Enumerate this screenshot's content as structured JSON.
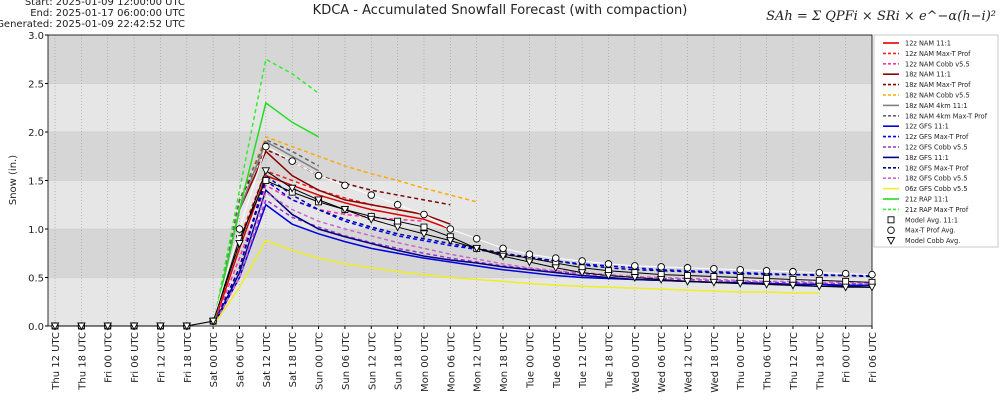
{
  "chart_data": {
    "type": "line",
    "title": "KDCA - Accumulated Snowfall Forecast (with compaction)",
    "header": [
      "Start: 2025-01-09 12:00:00 UTC",
      "End: 2025-01-17 06:00:00 UTC",
      "Generated: 2025-01-09 22:42:52 UTC"
    ],
    "formula": "SAh = Σ QPFi × SRi × e^−α(h−i)²",
    "ylabel": "Snow (in.)",
    "xlim": [
      -1.6,
      186
    ],
    "ylim": [
      0,
      3
    ],
    "yticks": [
      {
        "value": 0,
        "label": "0.0"
      },
      {
        "value": 0.5,
        "label": "0.5"
      },
      {
        "value": 1,
        "label": "1.0"
      },
      {
        "value": 1.5,
        "label": "1.5"
      },
      {
        "value": 2,
        "label": "2.0"
      },
      {
        "value": 2.5,
        "label": "2.5"
      },
      {
        "value": 3,
        "label": "3.0"
      }
    ],
    "xticks": [
      {
        "value": 0,
        "label": "Thu 12 UTC"
      },
      {
        "value": 6,
        "label": "Thu 18 UTC"
      },
      {
        "value": 12,
        "label": "Fri 00 UTC"
      },
      {
        "value": 18,
        "label": "Fri 06 UTC"
      },
      {
        "value": 24,
        "label": "Fri 12 UTC"
      },
      {
        "value": 30,
        "label": "Fri 18 UTC"
      },
      {
        "value": 36,
        "label": "Sat 00 UTC"
      },
      {
        "value": 42,
        "label": "Sat 06 UTC"
      },
      {
        "value": 48,
        "label": "Sat 12 UTC"
      },
      {
        "value": 54,
        "label": "Sat 18 UTC"
      },
      {
        "value": 60,
        "label": "Sun 00 UTC"
      },
      {
        "value": 66,
        "label": "Sun 06 UTC"
      },
      {
        "value": 72,
        "label": "Sun 12 UTC"
      },
      {
        "value": 78,
        "label": "Sun 18 UTC"
      },
      {
        "value": 84,
        "label": "Mon 00 UTC"
      },
      {
        "value": 90,
        "label": "Mon 06 UTC"
      },
      {
        "value": 96,
        "label": "Mon 12 UTC"
      },
      {
        "value": 102,
        "label": "Mon 18 UTC"
      },
      {
        "value": 108,
        "label": "Tue 00 UTC"
      },
      {
        "value": 114,
        "label": "Tue 06 UTC"
      },
      {
        "value": 120,
        "label": "Tue 12 UTC"
      },
      {
        "value": 126,
        "label": "Tue 18 UTC"
      },
      {
        "value": 132,
        "label": "Wed 00 UTC"
      },
      {
        "value": 138,
        "label": "Wed 06 UTC"
      },
      {
        "value": 144,
        "label": "Wed 12 UTC"
      },
      {
        "value": 150,
        "label": "Wed 18 UTC"
      },
      {
        "value": 156,
        "label": "Thu 00 UTC"
      },
      {
        "value": 162,
        "label": "Thu 06 UTC"
      },
      {
        "value": 168,
        "label": "Thu 12 UTC"
      },
      {
        "value": 174,
        "label": "Thu 18 UTC"
      },
      {
        "value": 180,
        "label": "Fri 00 UTC"
      },
      {
        "value": 186,
        "label": "Fri 06 UTC"
      }
    ],
    "grid": true,
    "legend": "right",
    "series": [
      {
        "name": "12z NAM 11:1",
        "color": "#dd0000",
        "dash": false,
        "x": [
          36,
          42,
          48,
          54,
          60,
          66,
          72,
          78,
          84,
          90
        ],
        "values": [
          0,
          0.8,
          1.55,
          1.45,
          1.35,
          1.27,
          1.2,
          1.15,
          1.1,
          1.0
        ]
      },
      {
        "name": "12z NAM Max-T Prof",
        "color": "#ee2222",
        "dash": true,
        "x": [
          36,
          42,
          48,
          54,
          60,
          66,
          72,
          78,
          84
        ],
        "values": [
          0,
          0.9,
          1.6,
          1.5,
          1.4,
          1.32,
          1.25,
          1.2,
          1.15
        ]
      },
      {
        "name": "12z NAM Cobb v5.5",
        "color": "#ff33aa",
        "dash": true,
        "x": [
          36,
          42,
          48,
          54,
          60,
          66,
          72,
          78,
          84
        ],
        "values": [
          0,
          0.7,
          1.45,
          1.3,
          1.2,
          1.15,
          1.12,
          1.1,
          1.08
        ]
      },
      {
        "name": "18z NAM 11:1",
        "color": "#8b0000",
        "dash": false,
        "x": [
          36,
          42,
          48,
          54,
          60,
          66,
          72,
          78,
          84,
          90
        ],
        "values": [
          0,
          1.2,
          1.8,
          1.55,
          1.4,
          1.3,
          1.25,
          1.2,
          1.15,
          1.05
        ]
      },
      {
        "name": "18z NAM Max-T Prof",
        "color": "#7a0a0a",
        "dash": true,
        "x": [
          36,
          42,
          48,
          54,
          60,
          66,
          72,
          78,
          84,
          90
        ],
        "values": [
          0,
          1.3,
          1.82,
          1.7,
          1.55,
          1.47,
          1.4,
          1.35,
          1.3,
          1.25
        ]
      },
      {
        "name": "18z NAM Cobb v5.5",
        "color": "#ffaa00",
        "dash": true,
        "x": [
          36,
          42,
          48,
          54,
          60,
          66,
          72,
          78,
          84,
          90,
          96
        ],
        "values": [
          0,
          1.3,
          1.95,
          1.85,
          1.75,
          1.65,
          1.57,
          1.5,
          1.42,
          1.35,
          1.28
        ]
      },
      {
        "name": "18z NAM 4km 11:1",
        "color": "#808080",
        "dash": false,
        "x": [
          36,
          42,
          48,
          54,
          60
        ],
        "values": [
          0,
          1.2,
          1.9,
          1.75,
          1.6
        ]
      },
      {
        "name": "18z NAM 4km Max-T Prof",
        "color": "#666666",
        "dash": true,
        "x": [
          36,
          42,
          48,
          54,
          60
        ],
        "values": [
          0,
          1.3,
          1.92,
          1.8,
          1.65
        ]
      },
      {
        "name": "12z GFS 11:1",
        "color": "#0000dd",
        "dash": false,
        "x": [
          36,
          42,
          48,
          54,
          60,
          66,
          72,
          78,
          84,
          90,
          96,
          102,
          108,
          114,
          120,
          126,
          132,
          138,
          144,
          150,
          156,
          162,
          168,
          174,
          180,
          186
        ],
        "values": [
          0,
          0.5,
          1.25,
          1.05,
          0.95,
          0.87,
          0.8,
          0.75,
          0.7,
          0.66,
          0.62,
          0.58,
          0.55,
          0.52,
          0.5,
          0.49,
          0.48,
          0.47,
          0.46,
          0.45,
          0.45,
          0.44,
          0.43,
          0.43,
          0.42,
          0.42
        ]
      },
      {
        "name": "12z GFS Max-T Prof",
        "color": "#0000ee",
        "dash": true,
        "x": [
          36,
          42,
          48,
          54,
          60,
          66,
          72,
          78,
          84,
          90,
          96,
          102,
          108,
          114,
          120,
          126,
          132,
          138,
          144,
          150,
          156,
          162,
          168,
          174,
          180,
          186
        ],
        "values": [
          0,
          0.6,
          1.5,
          1.3,
          1.2,
          1.08,
          1.0,
          0.93,
          0.88,
          0.83,
          0.79,
          0.74,
          0.7,
          0.67,
          0.64,
          0.62,
          0.6,
          0.58,
          0.57,
          0.56,
          0.55,
          0.54,
          0.53,
          0.53,
          0.52,
          0.52
        ]
      },
      {
        "name": "12z GFS Cobb v5.5",
        "color": "#9933cc",
        "dash": true,
        "x": [
          36,
          42,
          48,
          54,
          60,
          66,
          72,
          78,
          84,
          90,
          96,
          102,
          108,
          114,
          120,
          126,
          132,
          138,
          144,
          150,
          156,
          162,
          168,
          174,
          180,
          186
        ],
        "values": [
          0,
          0.5,
          1.3,
          1.12,
          1.02,
          0.93,
          0.86,
          0.8,
          0.75,
          0.7,
          0.66,
          0.62,
          0.59,
          0.56,
          0.54,
          0.52,
          0.5,
          0.49,
          0.48,
          0.47,
          0.46,
          0.45,
          0.45,
          0.44,
          0.44,
          0.43
        ]
      },
      {
        "name": "18z GFS 11:1",
        "color": "#000080",
        "dash": false,
        "x": [
          36,
          42,
          48,
          54,
          60,
          66,
          72,
          78,
          84,
          90,
          96,
          102,
          108,
          114,
          120,
          126,
          132,
          138,
          144,
          150,
          156,
          162,
          168,
          174,
          180,
          186
        ],
        "values": [
          0,
          0.55,
          1.4,
          1.15,
          1.0,
          0.92,
          0.85,
          0.78,
          0.72,
          0.68,
          0.65,
          0.61,
          0.58,
          0.55,
          0.52,
          0.5,
          0.48,
          0.47,
          0.46,
          0.45,
          0.44,
          0.43,
          0.42,
          0.41,
          0.41,
          0.4
        ]
      },
      {
        "name": "18z GFS Max-T Prof",
        "color": "#000099",
        "dash": true,
        "x": [
          36,
          42,
          48,
          54,
          60,
          66,
          72,
          78,
          84,
          90,
          96,
          102,
          108,
          114,
          120,
          126,
          132,
          138,
          144,
          150,
          156,
          162,
          168,
          174,
          180,
          186
        ],
        "values": [
          0,
          0.6,
          1.55,
          1.35,
          1.2,
          1.1,
          1.02,
          0.95,
          0.9,
          0.85,
          0.8,
          0.75,
          0.71,
          0.67,
          0.63,
          0.6,
          0.58,
          0.57,
          0.56,
          0.55,
          0.54,
          0.53,
          0.53,
          0.52,
          0.52,
          0.51
        ]
      },
      {
        "name": "18z GFS Cobb v5.5",
        "color": "#cc66cc",
        "dash": true,
        "x": [
          36,
          42,
          48,
          54,
          60,
          66,
          72,
          78,
          84,
          90,
          96,
          102,
          108,
          114,
          120,
          126,
          132,
          138,
          144,
          150,
          156,
          162,
          168,
          174,
          180,
          186
        ],
        "values": [
          0,
          0.5,
          1.38,
          1.2,
          1.08,
          1.0,
          0.93,
          0.86,
          0.8,
          0.74,
          0.69,
          0.64,
          0.6,
          0.57,
          0.55,
          0.53,
          0.51,
          0.5,
          0.49,
          0.48,
          0.47,
          0.46,
          0.46,
          0.45,
          0.45,
          0.44
        ]
      },
      {
        "name": "06z GFS Cobb v5.5",
        "color": "#eeee22",
        "dash": false,
        "x": [
          36,
          42,
          48,
          54,
          60,
          66,
          72,
          78,
          84,
          90,
          96,
          102,
          108,
          114,
          120,
          126,
          132,
          138,
          144,
          150,
          156,
          162,
          168,
          174
        ],
        "values": [
          0,
          0.4,
          0.88,
          0.78,
          0.7,
          0.64,
          0.6,
          0.56,
          0.53,
          0.5,
          0.48,
          0.46,
          0.44,
          0.42,
          0.41,
          0.4,
          0.39,
          0.38,
          0.37,
          0.36,
          0.35,
          0.35,
          0.34,
          0.34
        ]
      },
      {
        "name": "21z RAP 11:1",
        "color": "#22dd22",
        "dash": false,
        "x": [
          36,
          42,
          48,
          54,
          60
        ],
        "values": [
          0,
          1.2,
          2.3,
          2.1,
          1.95
        ]
      },
      {
        "name": "21z RAP Max-T Prof",
        "color": "#33ee33",
        "dash": true,
        "x": [
          36,
          42,
          48,
          54,
          60
        ],
        "values": [
          0,
          1.4,
          2.75,
          2.6,
          2.4
        ]
      },
      {
        "name": "Model Avg. 11:1",
        "color": "#000000",
        "dash": false,
        "marker": "square",
        "x": [
          0,
          6,
          12,
          18,
          24,
          30,
          36,
          42,
          48,
          54,
          60,
          66,
          72,
          78,
          84,
          90,
          96,
          102,
          108,
          114,
          120,
          126,
          132,
          138,
          144,
          150,
          156,
          162,
          168,
          174,
          180,
          186
        ],
        "values": [
          0,
          0,
          0,
          0,
          0,
          0,
          0.05,
          0.9,
          1.5,
          1.38,
          1.28,
          1.2,
          1.13,
          1.08,
          1.02,
          0.92,
          0.8,
          0.74,
          0.7,
          0.65,
          0.6,
          0.57,
          0.55,
          0.53,
          0.52,
          0.51,
          0.5,
          0.49,
          0.48,
          0.47,
          0.46,
          0.45
        ]
      },
      {
        "name": "Max-T Prof Avg.",
        "color": "#ffffff",
        "dash": false,
        "marker": "circle",
        "x": [
          0,
          6,
          12,
          18,
          24,
          30,
          36,
          42,
          48,
          54,
          60,
          66,
          72,
          78,
          84,
          90,
          96,
          102,
          108,
          114,
          120,
          126,
          132,
          138,
          144,
          150,
          156,
          162,
          168,
          174,
          180,
          186
        ],
        "values": [
          0,
          0,
          0,
          0,
          0,
          0,
          0.05,
          1.0,
          1.85,
          1.7,
          1.55,
          1.45,
          1.35,
          1.25,
          1.15,
          1.0,
          0.9,
          0.8,
          0.74,
          0.7,
          0.67,
          0.64,
          0.62,
          0.61,
          0.6,
          0.59,
          0.58,
          0.57,
          0.56,
          0.55,
          0.54,
          0.53
        ]
      },
      {
        "name": "Model Cobb Avg.",
        "color": "#000000",
        "dash": false,
        "marker": "triangle",
        "x": [
          0,
          6,
          12,
          18,
          24,
          30,
          36,
          42,
          48,
          54,
          60,
          66,
          72,
          78,
          84,
          90,
          96,
          102,
          108,
          114,
          120,
          126,
          132,
          138,
          144,
          150,
          156,
          162,
          168,
          174,
          180,
          186
        ],
        "values": [
          0,
          0,
          0,
          0,
          0,
          0,
          0.05,
          0.85,
          1.6,
          1.42,
          1.3,
          1.2,
          1.1,
          1.02,
          0.95,
          0.88,
          0.8,
          0.72,
          0.66,
          0.6,
          0.55,
          0.52,
          0.5,
          0.48,
          0.46,
          0.45,
          0.44,
          0.43,
          0.42,
          0.41,
          0.4,
          0.4
        ]
      }
    ]
  }
}
